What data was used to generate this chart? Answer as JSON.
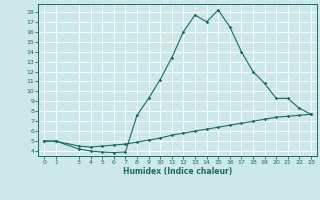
{
  "xlabel": "Humidex (Indice chaleur)",
  "ylabel": "",
  "background_color": "#cce8ea",
  "grid_color": "#ffffff",
  "line_color": "#1a6b5e",
  "xlim": [
    -0.5,
    23.5
  ],
  "ylim": [
    3.5,
    18.8
  ],
  "xticks": [
    0,
    1,
    3,
    4,
    5,
    6,
    7,
    8,
    9,
    10,
    11,
    12,
    13,
    14,
    15,
    16,
    17,
    18,
    19,
    20,
    21,
    22,
    23
  ],
  "yticks": [
    4,
    5,
    6,
    7,
    8,
    9,
    10,
    11,
    12,
    13,
    14,
    15,
    16,
    17,
    18
  ],
  "curve1_x": [
    0,
    1,
    3,
    4,
    5,
    6,
    7,
    8,
    9,
    10,
    11,
    12,
    13,
    14,
    15,
    16,
    17,
    18,
    19,
    20,
    21,
    22,
    23
  ],
  "curve1_y": [
    5.0,
    5.0,
    4.2,
    4.0,
    3.9,
    3.85,
    3.9,
    7.6,
    9.3,
    11.2,
    13.4,
    16.0,
    17.7,
    17.0,
    18.2,
    16.5,
    14.0,
    12.0,
    10.8,
    9.3,
    9.3,
    8.3,
    7.7
  ],
  "curve2_x": [
    0,
    1,
    3,
    4,
    5,
    6,
    7,
    8,
    9,
    10,
    11,
    12,
    13,
    14,
    15,
    16,
    17,
    18,
    19,
    20,
    21,
    22,
    23
  ],
  "curve2_y": [
    5.0,
    5.0,
    4.5,
    4.4,
    4.5,
    4.6,
    4.7,
    4.9,
    5.1,
    5.3,
    5.6,
    5.8,
    6.0,
    6.2,
    6.4,
    6.6,
    6.8,
    7.0,
    7.2,
    7.4,
    7.5,
    7.6,
    7.7
  ]
}
